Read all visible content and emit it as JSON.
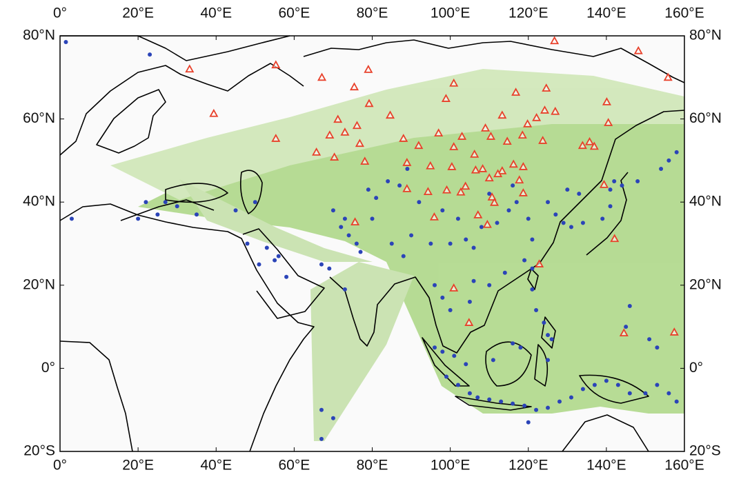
{
  "chart_data": {
    "type": "scatter-map",
    "xlim": [
      0,
      160
    ],
    "ylim": [
      -20,
      80
    ],
    "xticks": [
      {
        "value": 0,
        "label": "0°"
      },
      {
        "value": 20,
        "label": "20°E"
      },
      {
        "value": 40,
        "label": "40°E"
      },
      {
        "value": 60,
        "label": "60°E"
      },
      {
        "value": 80,
        "label": "80°E"
      },
      {
        "value": 100,
        "label": "100°E"
      },
      {
        "value": 120,
        "label": "120°E"
      },
      {
        "value": 140,
        "label": "140°E"
      },
      {
        "value": 160,
        "label": "160°E"
      }
    ],
    "yticks": [
      {
        "value": -20,
        "label": "20°S"
      },
      {
        "value": 0,
        "label": "0°"
      },
      {
        "value": 20,
        "label": "20°N"
      },
      {
        "value": 40,
        "label": "40°N"
      },
      {
        "value": 60,
        "label": "60°N"
      },
      {
        "value": 80,
        "label": "80°N"
      }
    ],
    "series": [
      {
        "marker": "circle",
        "color": "#2b44b8",
        "x": [
          1.5,
          23,
          22,
          25,
          30,
          35,
          27,
          20,
          3,
          45,
          50,
          53,
          55,
          51,
          58,
          56,
          48,
          67,
          69,
          73,
          72,
          74,
          76,
          77,
          73,
          70,
          80,
          85,
          88,
          90,
          95,
          100,
          104,
          106,
          108,
          112,
          115,
          117,
          120,
          121,
          119,
          114,
          110,
          106,
          105,
          100,
          98,
          96,
          89,
          87,
          84,
          81,
          79,
          92,
          98,
          102,
          110,
          116,
          125,
          127,
          129,
          131,
          134,
          139,
          141,
          141,
          142,
          144,
          130,
          133,
          121,
          121,
          122,
          124,
          125,
          126,
          125,
          118,
          116,
          111,
          104,
          101,
          98,
          96,
          99,
          102,
          105,
          107,
          110,
          113,
          116,
          119,
          122,
          125,
          128,
          131,
          134,
          137,
          140,
          143,
          146,
          150,
          153,
          156,
          158,
          145,
          146,
          151,
          153,
          156,
          158,
          154,
          148,
          67,
          70,
          67,
          120
        ],
        "y": [
          78.5,
          75.5,
          40,
          37,
          39,
          37,
          40,
          36,
          36,
          38,
          40,
          29,
          26,
          25,
          22,
          27,
          30,
          25,
          24,
          19,
          34,
          32,
          30,
          28,
          36,
          38,
          36,
          30,
          27,
          32,
          30,
          30,
          31,
          29,
          34,
          35,
          38,
          40,
          36,
          31,
          26,
          23,
          20,
          21,
          16,
          14,
          17,
          20,
          48,
          44,
          45,
          41,
          43,
          40,
          38,
          36,
          42,
          44,
          40,
          37,
          35,
          34,
          35,
          36,
          39,
          43,
          45,
          44,
          43,
          42,
          24,
          19,
          14,
          11,
          8,
          7,
          2,
          5,
          6,
          2,
          1,
          3,
          4,
          5,
          -2,
          -4,
          -6,
          -7,
          -7.5,
          -8,
          -8.5,
          -9,
          -10,
          -9.5,
          -8,
          -7,
          -5,
          -4,
          -3,
          -4,
          -6,
          -6,
          -4,
          -6,
          -8,
          10,
          15,
          7,
          5,
          50,
          52,
          48,
          45,
          -17,
          -12,
          -10,
          -13
        ]
      },
      {
        "marker": "triangle",
        "color": "#e8402a",
        "x": [
          126.7,
          148.2,
          155.8,
          33.2,
          55.3,
          67.1,
          79,
          75.4,
          100.9,
          98.9,
          116.8,
          124.6,
          79.2,
          84.6,
          39.4,
          71.2,
          76.1,
          55.3,
          69.1,
          73,
          76.8,
          65.7,
          70.3,
          78.1,
          88,
          91.9,
          97,
          103,
          100.9,
          106.2,
          109,
          113.3,
          119.8,
          122.1,
          124.2,
          126.9,
          110.4,
          114.6,
          118.5,
          123.7,
          133.9,
          136.9,
          135.7,
          140.1,
          140.5,
          94.9,
          100.4,
          88.9,
          108.3,
          113.3,
          116.2,
          118.7,
          94.3,
          99.1,
          103.9,
          106.5,
          110,
          112.2,
          117.7,
          88.9,
          95.9,
          107.1,
          109.5,
          110.7,
          111.3,
          118.7,
          139.4,
          142.1,
          122.8,
          100.9,
          104.8,
          144.5,
          157.4,
          75.6,
          102.7
        ],
        "y": [
          78.8,
          76.4,
          70,
          72,
          73,
          70,
          71.9,
          67.7,
          68.6,
          64.9,
          66.4,
          67.4,
          63.7,
          60.9,
          61.3,
          59.9,
          58.4,
          55.3,
          56.1,
          56.8,
          54.1,
          52,
          50.8,
          49.8,
          55.3,
          53.6,
          56.6,
          55.8,
          53.3,
          51.5,
          57.8,
          60.9,
          58.8,
          60.3,
          62.1,
          61.8,
          55.8,
          54.6,
          56.1,
          54.8,
          53.6,
          53.4,
          54.5,
          64.1,
          59.1,
          48.7,
          48.5,
          49.5,
          48,
          47.5,
          49.1,
          48.5,
          42.5,
          42.9,
          43.8,
          47.7,
          45.8,
          46.8,
          45.3,
          43.2,
          36.4,
          36.9,
          34.6,
          41.2,
          39.9,
          42.2,
          44.2,
          31.2,
          25.1,
          19.3,
          11,
          8.5,
          8.7,
          35.2,
          42.4
        ]
      }
    ]
  }
}
